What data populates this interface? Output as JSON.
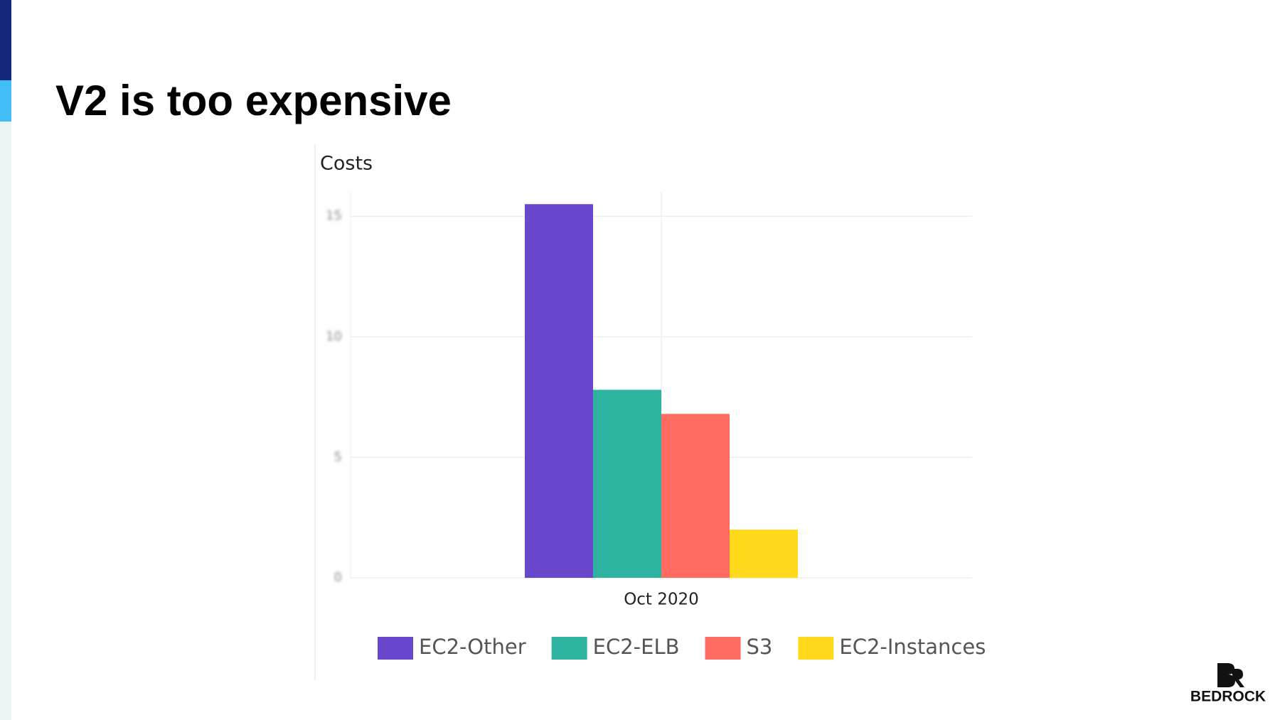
{
  "title": "V2 is too expensive",
  "logo": "BEDROCK",
  "chart_data": {
    "type": "bar",
    "title": "Costs",
    "categories": [
      "Oct 2020"
    ],
    "series": [
      {
        "name": "EC2-Other",
        "color": "#6a48cd",
        "values": [
          15.5
        ]
      },
      {
        "name": "EC2-ELB",
        "color": "#2db3a0",
        "values": [
          7.8
        ]
      },
      {
        "name": "S3",
        "color": "#ff6b61",
        "values": [
          6.8
        ]
      },
      {
        "name": "EC2-Instances",
        "color": "#ffd91a",
        "values": [
          2
        ]
      }
    ],
    "ylim": [
      0,
      16
    ],
    "yticks": [
      0,
      5,
      10,
      15
    ],
    "grid": true,
    "legend": "bottom"
  }
}
